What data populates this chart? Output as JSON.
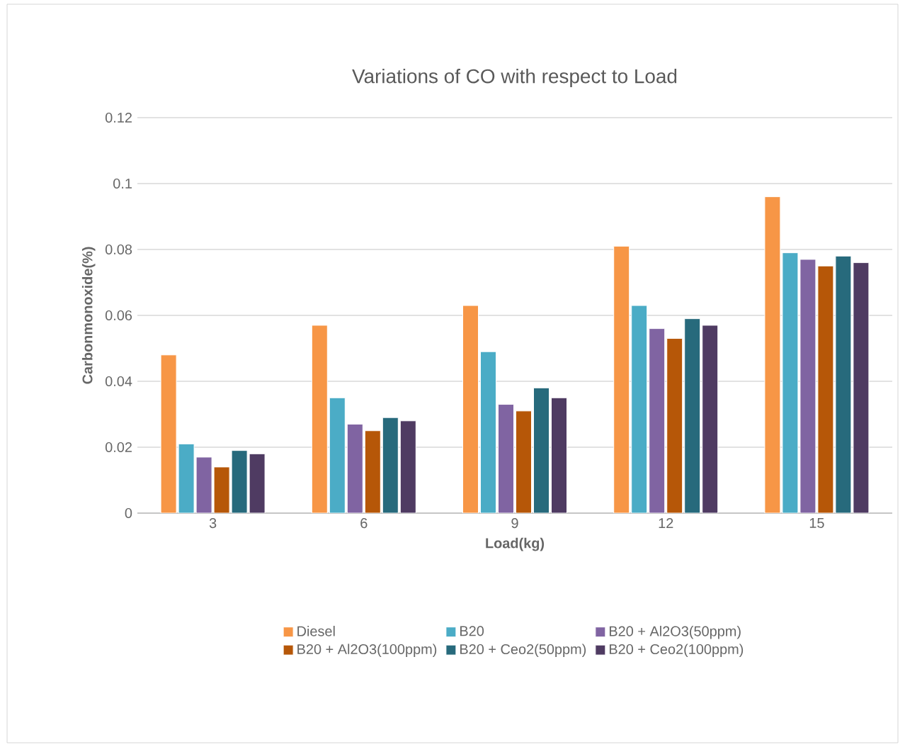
{
  "chart_data": {
    "type": "bar",
    "title": "Variations of CO with respect to Load",
    "xlabel": "Load(kg)",
    "ylabel": "Carbonmonoxide(%)",
    "categories": [
      "3",
      "6",
      "9",
      "12",
      "15"
    ],
    "series": [
      {
        "name": "Diesel",
        "color": "#f79646",
        "values": [
          0.048,
          0.057,
          0.063,
          0.081,
          0.096
        ]
      },
      {
        "name": "B20",
        "color": "#4bacc6",
        "values": [
          0.021,
          0.035,
          0.049,
          0.063,
          0.079
        ]
      },
      {
        "name": "B20 + Al2O3(50ppm)",
        "color": "#8064a2",
        "values": [
          0.017,
          0.027,
          0.033,
          0.056,
          0.077
        ]
      },
      {
        "name": "B20 + Al2O3(100ppm)",
        "color": "#b65708",
        "values": [
          0.014,
          0.025,
          0.031,
          0.053,
          0.075
        ]
      },
      {
        "name": "B20 + Ceo2(50ppm)",
        "color": "#276a7c",
        "values": [
          0.019,
          0.029,
          0.038,
          0.059,
          0.078
        ]
      },
      {
        "name": "B20 + Ceo2(100ppm)",
        "color": "#4f3b62",
        "values": [
          0.018,
          0.028,
          0.035,
          0.057,
          0.076
        ]
      }
    ],
    "ylim": [
      0,
      0.12
    ],
    "yticks": [
      0,
      0.02,
      0.04,
      0.06,
      0.08,
      0.1,
      0.12
    ],
    "grid": "y",
    "legend": "bottom"
  }
}
